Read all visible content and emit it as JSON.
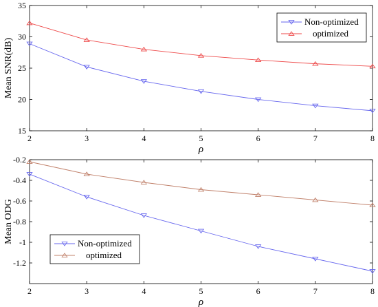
{
  "chart_data": [
    {
      "type": "line",
      "x": [
        2,
        3,
        4,
        5,
        6,
        7,
        8
      ],
      "xlabel": "ρ",
      "ylabel": "Mean SNR(dB)",
      "xlim": [
        2,
        8
      ],
      "ylim": [
        15,
        35
      ],
      "xticks": [
        2,
        3,
        4,
        5,
        6,
        7,
        8
      ],
      "yticks": [
        15,
        20,
        25,
        30,
        35
      ],
      "grid": false,
      "legend": "top-right",
      "series": [
        {
          "name": "Non-optimized",
          "marker": "triangle-down",
          "color": "#6666ee",
          "values": [
            28.9,
            25.2,
            22.9,
            21.3,
            20.0,
            19.0,
            18.2
          ]
        },
        {
          "name": "optimized",
          "marker": "triangle-up",
          "color": "#ee4a4a",
          "values": [
            32.2,
            29.5,
            28.0,
            27.0,
            26.3,
            25.7,
            25.3
          ]
        }
      ]
    },
    {
      "type": "line",
      "x": [
        2,
        3,
        4,
        5,
        6,
        7,
        8
      ],
      "xlabel": "ρ",
      "ylabel": "Mean ODG",
      "xlim": [
        2,
        8
      ],
      "ylim": [
        -1.4,
        -0.2
      ],
      "xticks": [
        2,
        3,
        4,
        5,
        6,
        7,
        8
      ],
      "yticks": [
        -1.2,
        -1,
        -0.8,
        -0.6,
        -0.4,
        -0.2
      ],
      "grid": false,
      "legend": "bottom-left",
      "series": [
        {
          "name": "Non-optimized",
          "marker": "triangle-down",
          "color": "#6666ee",
          "values": [
            -0.34,
            -0.56,
            -0.74,
            -0.89,
            -1.04,
            -1.16,
            -1.28
          ]
        },
        {
          "name": "optimized",
          "marker": "triangle-up",
          "color": "#c0806a",
          "values": [
            -0.22,
            -0.34,
            -0.42,
            -0.49,
            -0.54,
            -0.59,
            -0.64
          ]
        }
      ]
    }
  ]
}
